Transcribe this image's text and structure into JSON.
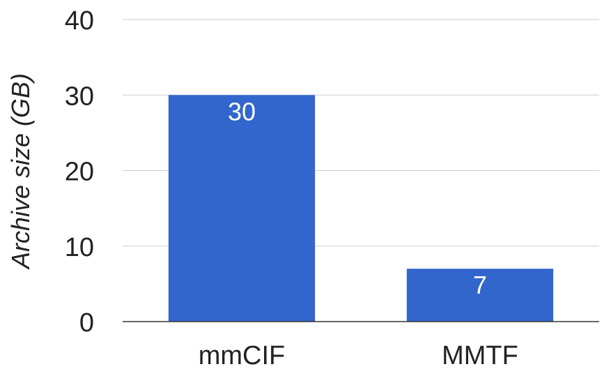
{
  "chart_data": {
    "type": "bar",
    "categories": [
      "mmCIF",
      "MMTF"
    ],
    "values": [
      30,
      7
    ],
    "data_labels": [
      "30",
      "7"
    ],
    "title": "",
    "xlabel": "",
    "ylabel": "Archive size (GB)",
    "ylim": [
      0,
      40
    ],
    "yticks": [
      0,
      10,
      20,
      30,
      40
    ],
    "ytick_labels": [
      "0",
      "10",
      "20",
      "30",
      "40"
    ],
    "grid": true,
    "legend": "none",
    "colors": {
      "bar": "#3366cc",
      "gridline": "#cccccc",
      "baseline": "#333333",
      "text": "#222222",
      "data_label": "#ffffff"
    }
  }
}
